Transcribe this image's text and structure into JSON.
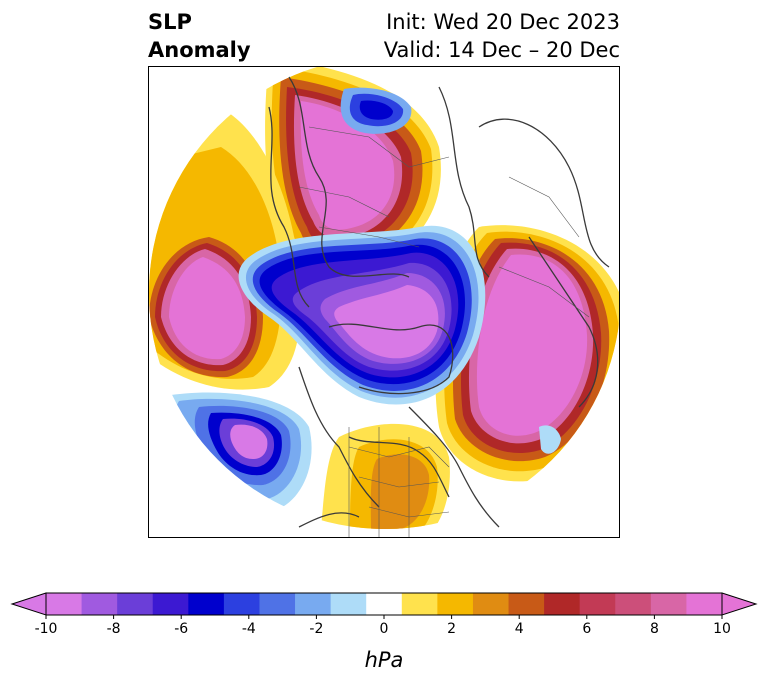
{
  "title": {
    "left_line1": "SLP",
    "left_line2": "Anomaly",
    "init": "Init: Wed 20 Dec 2023",
    "valid": "Valid: 14 Dec – 20 Dec"
  },
  "colorbar": {
    "unit_label": "hPa",
    "ticks": [
      "-10",
      "-8",
      "-6",
      "-4",
      "-2",
      "0",
      "2",
      "4",
      "6",
      "8",
      "10"
    ],
    "colors": [
      "#d879e6",
      "#a05ae0",
      "#6b3ed8",
      "#3c19d2",
      "#0000cd",
      "#2c40e0",
      "#4f72e6",
      "#78aaf0",
      "#aedcf8",
      "#ffffff",
      "#ffe24d",
      "#f5b800",
      "#e08c12",
      "#c85a17",
      "#b02828",
      "#c23a55",
      "#cc4f7a",
      "#d866a6",
      "#e473d6"
    ]
  },
  "map": {
    "features": [
      "coastlines",
      "country-borders",
      "state-borders"
    ],
    "anomaly_regions": [
      {
        "name": "siberia-high",
        "sign": "positive",
        "peak": 10
      },
      {
        "name": "north-pacific-high",
        "sign": "positive",
        "peak": 10
      },
      {
        "name": "north-atlantic-high",
        "sign": "positive",
        "peak": 10
      },
      {
        "name": "arctic-low",
        "sign": "negative",
        "peak": -10
      },
      {
        "name": "eastern-pacific-low",
        "sign": "negative",
        "peak": -10
      },
      {
        "name": "kara-sea-low",
        "sign": "negative",
        "peak": -6
      }
    ]
  }
}
